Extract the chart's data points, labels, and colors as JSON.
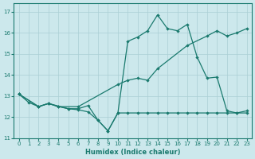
{
  "xlabel": "Humidex (Indice chaleur)",
  "xlim": [
    -0.5,
    23.5
  ],
  "ylim": [
    11,
    17.4
  ],
  "yticks": [
    11,
    12,
    13,
    14,
    15,
    16,
    17
  ],
  "xticks": [
    0,
    1,
    2,
    3,
    4,
    5,
    6,
    7,
    8,
    9,
    10,
    11,
    12,
    13,
    14,
    15,
    16,
    17,
    18,
    19,
    20,
    21,
    22,
    23
  ],
  "bg_color": "#cce8ec",
  "grid_color": "#aacfd4",
  "line_color": "#1a7a6e",
  "series1_x": [
    0,
    1,
    2,
    3,
    4,
    5,
    6,
    7,
    8,
    9,
    10,
    11,
    12,
    13,
    14,
    15,
    16,
    17,
    18,
    19,
    20,
    21,
    22,
    23
  ],
  "series1_y": [
    13.1,
    12.7,
    12.5,
    12.65,
    12.5,
    12.4,
    12.4,
    12.55,
    11.85,
    11.35,
    12.2,
    15.6,
    15.8,
    16.1,
    16.85,
    16.2,
    16.1,
    16.4,
    14.85,
    13.85,
    13.9,
    12.3,
    12.2,
    12.3
  ],
  "series2_x": [
    0,
    2,
    3,
    4,
    6,
    10,
    11,
    12,
    13,
    14,
    17,
    19,
    20,
    21,
    22,
    23
  ],
  "series2_y": [
    13.1,
    12.5,
    12.65,
    12.5,
    12.5,
    13.55,
    13.75,
    13.85,
    13.75,
    14.3,
    15.4,
    15.85,
    16.1,
    15.85,
    16.0,
    16.2
  ],
  "series3_x": [
    0,
    2,
    3,
    5,
    6,
    7,
    8,
    9,
    10,
    11,
    12,
    13,
    14,
    15,
    16,
    17,
    18,
    19,
    20,
    21,
    22,
    23
  ],
  "series3_y": [
    13.1,
    12.5,
    12.65,
    12.4,
    12.35,
    12.25,
    11.85,
    11.35,
    12.2,
    12.2,
    12.2,
    12.2,
    12.2,
    12.2,
    12.2,
    12.2,
    12.2,
    12.2,
    12.2,
    12.2,
    12.2,
    12.2
  ]
}
